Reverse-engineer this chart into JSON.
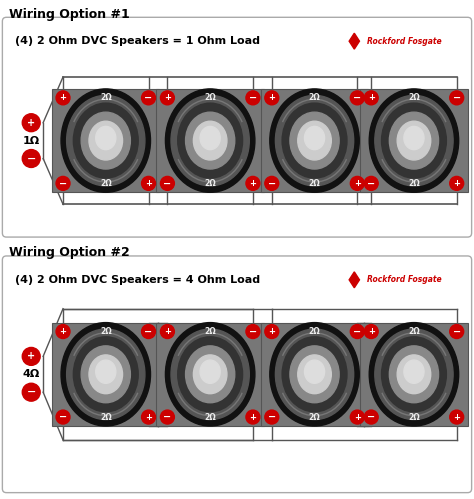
{
  "bg_color": "#ffffff",
  "title1": "Wiring Option #1",
  "title2": "Wiring Option #2",
  "box1_label": "(4) 2 Ohm DVC Speakers = 1 Ohm Load",
  "box2_label": "(4) 2 Ohm DVC Speakers = 4 Ohm Load",
  "impedance1": "1Ω",
  "impedance2": "4Ω",
  "ohm_label": "2Ω",
  "brand_text": "Rockford Fosgate",
  "brand_color": "#cc0000",
  "box_bg": "#ffffff",
  "box_border": "#aaaaaa",
  "speaker_sq_color": "#888888",
  "wire_color": "#555555",
  "terminal_color": "#cc0000",
  "num_speakers": 4,
  "figsize": [
    4.74,
    4.99
  ],
  "dpi": 100
}
